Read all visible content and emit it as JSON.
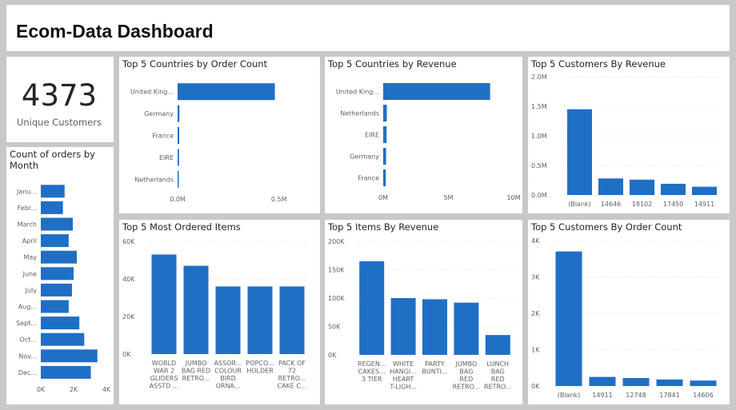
{
  "header": {
    "title": "Ecom-Data Dashboard"
  },
  "kpi": {
    "value": "4373",
    "label": "Unique Customers"
  },
  "chart_data": [
    {
      "id": "countries_orders",
      "type": "bar",
      "orientation": "horizontal",
      "title": "Top 5 Countries by Order Count",
      "categories": [
        "United King...",
        "Germany",
        "France",
        "EIRE",
        "Netherlands"
      ],
      "values": [
        0.48,
        0.009,
        0.008,
        0.007,
        0.002
      ],
      "value_unit": "M",
      "xlim": [
        0,
        0.6
      ],
      "ticks": [
        0,
        0.5
      ],
      "tick_labels": [
        "0.0M",
        "0.5M"
      ],
      "color": "#1f6fc5"
    },
    {
      "id": "countries_revenue",
      "type": "bar",
      "orientation": "horizontal",
      "title": "Top 5 Countries by Revenue",
      "categories": [
        "United King...",
        "Netherlands",
        "EIRE",
        "Germany",
        "France"
      ],
      "values": [
        8.2,
        0.28,
        0.26,
        0.22,
        0.2
      ],
      "value_unit": "M",
      "xlim": [
        0,
        10
      ],
      "ticks": [
        0,
        5,
        10
      ],
      "tick_labels": [
        "0M",
        "5M",
        "10M"
      ],
      "color": "#1f6fc5"
    },
    {
      "id": "customers_revenue",
      "type": "bar",
      "orientation": "vertical",
      "title": "Top 5 Customers By Revenue",
      "categories": [
        "(Blank)",
        "14646",
        "18102",
        "17450",
        "14911"
      ],
      "values": [
        1.45,
        0.28,
        0.26,
        0.19,
        0.14
      ],
      "value_unit": "M",
      "ylim": [
        0,
        2
      ],
      "ticks": [
        0,
        0.5,
        1,
        1.5,
        2
      ],
      "tick_labels": [
        "0.0M",
        "0.5M",
        "1.0M",
        "1.5M",
        "2.0M"
      ],
      "color": "#1f6fc5"
    },
    {
      "id": "orders_month",
      "type": "bar",
      "orientation": "horizontal",
      "title": "Count of orders by Month",
      "categories": [
        "Janu...",
        "Febr...",
        "March",
        "April",
        "May",
        "June",
        "July",
        "Aug...",
        "Sept...",
        "Oct...",
        "Nov...",
        "Dec..."
      ],
      "values": [
        1.45,
        1.35,
        1.95,
        1.7,
        2.2,
        2.0,
        1.9,
        1.7,
        2.35,
        2.65,
        3.45,
        3.05
      ],
      "value_unit": "K",
      "xlim": [
        0,
        4
      ],
      "ticks": [
        0,
        2,
        4
      ],
      "tick_labels": [
        "0K",
        "2K",
        "4K"
      ],
      "color": "#1f6fc5"
    },
    {
      "id": "items_ordered",
      "type": "bar",
      "orientation": "vertical",
      "title": "Top 5 Most Ordered Items",
      "categories": [
        [
          "WORLD",
          "WAR 2",
          "GLIDERS",
          "ASSTD ..."
        ],
        [
          "JUMBO",
          "BAG RED",
          "RETRO..."
        ],
        [
          "ASSOR...",
          "COLOUR",
          "BIRD",
          "ORNA..."
        ],
        [
          "POPCO...",
          "HOLDER"
        ],
        [
          "PACK OF",
          "72",
          "RETRO...",
          "CAKE C..."
        ]
      ],
      "values": [
        53,
        47,
        36,
        36,
        36
      ],
      "value_unit": "K",
      "ylim": [
        0,
        60
      ],
      "ticks": [
        0,
        20,
        40,
        60
      ],
      "tick_labels": [
        "0K",
        "20K",
        "40K",
        "60K"
      ],
      "color": "#1f6fc5"
    },
    {
      "id": "items_revenue",
      "type": "bar",
      "orientation": "vertical",
      "title": "Top 5 Items By Revenue",
      "categories": [
        [
          "REGEN...",
          "CAKES...",
          "3 TIER"
        ],
        [
          "WHITE",
          "HANGI...",
          "HEART",
          "T-LIGH..."
        ],
        [
          "PARTY",
          "BUNTI..."
        ],
        [
          "JUMBO",
          "BAG",
          "RED",
          "RETRO..."
        ],
        [
          "LUNCH",
          "BAG",
          "RED",
          "RETRO..."
        ]
      ],
      "values": [
        165,
        100,
        98,
        92,
        35
      ],
      "value_unit": "K",
      "ylim": [
        0,
        200
      ],
      "ticks": [
        0,
        50,
        100,
        150,
        200
      ],
      "tick_labels": [
        "0K",
        "50K",
        "100K",
        "150K",
        "200K"
      ],
      "color": "#1f6fc5"
    },
    {
      "id": "customers_orders",
      "type": "bar",
      "orientation": "vertical",
      "title": "Top 5 Customers By Order Count",
      "categories": [
        "(Blank)",
        "14911",
        "12748",
        "17841",
        "14606"
      ],
      "values": [
        3.7,
        0.25,
        0.22,
        0.18,
        0.15
      ],
      "value_unit": "K",
      "ylim": [
        0,
        4
      ],
      "ticks": [
        0,
        1,
        2,
        3,
        4
      ],
      "tick_labels": [
        "0K",
        "1K",
        "2K",
        "3K",
        "4K"
      ],
      "color": "#1f6fc5"
    }
  ]
}
